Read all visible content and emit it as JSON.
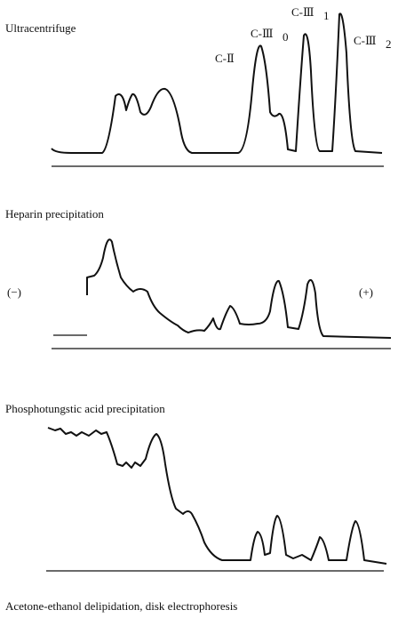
{
  "panels": [
    {
      "title": "Ultracentrifuge",
      "peaks": [
        {
          "text": "C-Ⅱ",
          "sub": ""
        },
        {
          "text": "C-Ⅲ",
          "sub": "0"
        },
        {
          "text": "C-Ⅲ",
          "sub": "1"
        },
        {
          "text": "C-Ⅲ",
          "sub": "2"
        }
      ]
    },
    {
      "title": "Heparin precipitation",
      "left": "(−)",
      "right": "(+)"
    },
    {
      "title": "Phosphotungstic acid precipitation"
    }
  ],
  "caption": "Acetone-ethanol delipidation, disk electrophoresis"
}
